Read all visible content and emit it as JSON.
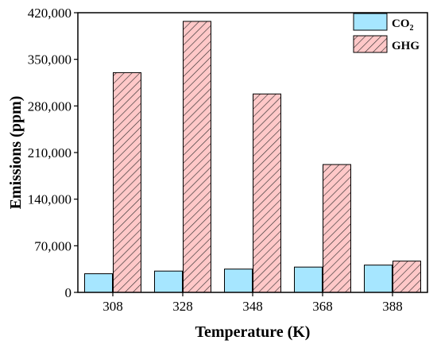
{
  "chart_data": {
    "type": "bar",
    "xlabel": "Temperature (K)",
    "ylabel": "Emissions (ppm)",
    "categories": [
      "308",
      "328",
      "348",
      "368",
      "388"
    ],
    "ylim": [
      0,
      420000
    ],
    "yticks": [
      0,
      70000,
      140000,
      210000,
      280000,
      350000,
      420000
    ],
    "ytick_labels": [
      "0",
      "70,000",
      "140,000",
      "210,000",
      "280,000",
      "350,000",
      "420,000"
    ],
    "series": [
      {
        "name": "CO",
        "name_subscript": "2",
        "values": [
          28000,
          32000,
          35000,
          38000,
          41000
        ],
        "color": "#a6e6ff",
        "pattern": "none"
      },
      {
        "name": "GHG",
        "values": [
          330000,
          407000,
          298000,
          192000,
          47000
        ],
        "color": "#ffc8c8",
        "pattern": "diagonal-hatch"
      }
    ],
    "legend_position": "top-right",
    "grid": false
  }
}
